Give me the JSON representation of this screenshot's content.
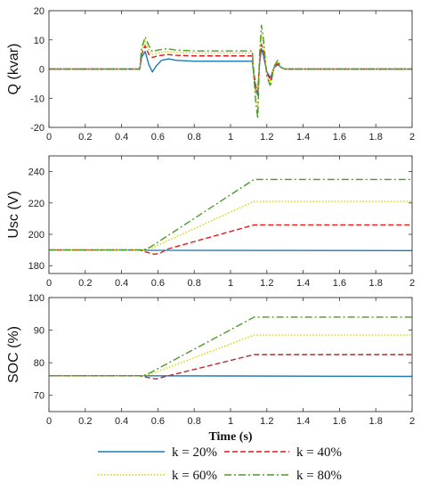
{
  "chart_data": [
    {
      "type": "line",
      "ylabel": "Q (kvar)",
      "xlabel": "",
      "xlim": [
        0,
        2
      ],
      "ylim": [
        -20,
        20
      ],
      "xticks": [
        "0",
        "0.2",
        "0.4",
        "0.6",
        "0.8",
        "1",
        "1.2",
        "1.4",
        "1.6",
        "1.8",
        "2"
      ],
      "yticks": [
        "-20",
        "-10",
        "0",
        "10",
        "20"
      ],
      "series": [
        {
          "name": "k = 20%",
          "color": "#1f78b4",
          "dash": "solid",
          "x": [
            0,
            0.5,
            0.51,
            0.53,
            0.55,
            0.57,
            0.59,
            0.62,
            0.66,
            0.7,
            0.8,
            1.0,
            1.12,
            1.13,
            1.14,
            1.15,
            1.16,
            1.17,
            1.18,
            1.2,
            1.22,
            1.24,
            1.26,
            1.28,
            1.3,
            1.34,
            1.4,
            2.0
          ],
          "y": [
            0,
            0,
            4,
            6,
            1.5,
            -1,
            1,
            3,
            3.5,
            3,
            2.7,
            2.7,
            2.7,
            -3,
            -7,
            -9,
            2,
            7,
            5,
            -1,
            -3,
            0.5,
            1.5,
            0.5,
            0,
            0,
            0,
            0
          ]
        },
        {
          "name": "k = 40%",
          "color": "#e31a1c",
          "dash": "6,3",
          "x": [
            0,
            0.5,
            0.51,
            0.53,
            0.55,
            0.57,
            0.6,
            0.65,
            0.7,
            0.8,
            1.0,
            1.12,
            1.13,
            1.14,
            1.15,
            1.16,
            1.17,
            1.18,
            1.2,
            1.22,
            1.24,
            1.26,
            1.28,
            1.3,
            1.34,
            1.4,
            2.0
          ],
          "y": [
            0,
            0,
            5,
            8,
            5,
            4,
            4.5,
            5,
            4.7,
            4.5,
            4.5,
            4.5,
            -2,
            -6,
            -8,
            3,
            8.5,
            6,
            -1,
            -4,
            0.5,
            2,
            0.5,
            0,
            0,
            0,
            0
          ]
        },
        {
          "name": "k = 60%",
          "color": "#d4d400",
          "dash": "1.5,2",
          "x": [
            0,
            0.5,
            0.51,
            0.53,
            0.55,
            0.57,
            0.6,
            0.65,
            0.7,
            0.8,
            1.0,
            1.12,
            1.13,
            1.14,
            1.15,
            1.16,
            1.17,
            1.18,
            1.2,
            1.22,
            1.24,
            1.26,
            1.28,
            1.3,
            1.34,
            1.4,
            2.0
          ],
          "y": [
            0,
            0,
            6,
            9.5,
            6.5,
            5,
            5.5,
            6,
            5.7,
            5.5,
            5.5,
            5.5,
            -3,
            -10,
            -14,
            4,
            12,
            9,
            -2,
            -5,
            1,
            2.5,
            0.5,
            0,
            0,
            0,
            0
          ]
        },
        {
          "name": "k = 80%",
          "color": "#4d9a2a",
          "dash": "8,3,2,3",
          "x": [
            0,
            0.5,
            0.51,
            0.53,
            0.55,
            0.57,
            0.6,
            0.65,
            0.7,
            0.8,
            1.0,
            1.12,
            1.13,
            1.14,
            1.15,
            1.16,
            1.17,
            1.18,
            1.2,
            1.22,
            1.24,
            1.26,
            1.28,
            1.3,
            1.34,
            1.4,
            2.0
          ],
          "y": [
            0,
            0,
            7,
            11,
            8,
            6,
            6.5,
            7,
            6.5,
            6.2,
            6.2,
            6.2,
            -4,
            -12,
            -17,
            5,
            15,
            11,
            -2.5,
            -6,
            1,
            3,
            0.5,
            0,
            0,
            0,
            0
          ]
        }
      ]
    },
    {
      "type": "line",
      "ylabel": "Usc (V)",
      "xlabel": "",
      "xlim": [
        0,
        2
      ],
      "ylim": [
        175,
        250
      ],
      "xticks": [
        "0",
        "0.2",
        "0.4",
        "0.6",
        "0.8",
        "1",
        "1.2",
        "1.4",
        "1.6",
        "1.8",
        "2"
      ],
      "yticks": [
        "180",
        "200",
        "220",
        "240"
      ],
      "series": [
        {
          "name": "k = 20%",
          "color": "#1f78b4",
          "dash": "solid",
          "x": [
            0,
            0.5,
            0.55,
            2.0
          ],
          "y": [
            190,
            190,
            189.8,
            189.6
          ]
        },
        {
          "name": "k = 40%",
          "color": "#e31a1c",
          "dash": "6,3",
          "x": [
            0,
            0.5,
            0.54,
            0.58,
            0.61,
            0.65,
            1.13,
            2.0
          ],
          "y": [
            190,
            190,
            188.5,
            187.3,
            187.8,
            190.5,
            206,
            206
          ]
        },
        {
          "name": "k = 60%",
          "color": "#d4d400",
          "dash": "1.5,2",
          "x": [
            0,
            0.52,
            0.56,
            1.13,
            2.0
          ],
          "y": [
            190,
            190,
            191,
            221,
            221
          ]
        },
        {
          "name": "k = 80%",
          "color": "#4d9a2a",
          "dash": "8,3,2,3",
          "x": [
            0,
            0.52,
            0.56,
            1.13,
            2.0
          ],
          "y": [
            190,
            190,
            192,
            235,
            235
          ]
        }
      ]
    },
    {
      "type": "line",
      "ylabel": "SOC (%)",
      "xlabel": "Time (s)",
      "xlim": [
        0,
        2
      ],
      "ylim": [
        65,
        100
      ],
      "xticks": [
        "0",
        "0.2",
        "0.4",
        "0.6",
        "0.8",
        "1",
        "1.2",
        "1.4",
        "1.6",
        "1.8",
        "2"
      ],
      "yticks": [
        "70",
        "80",
        "90",
        "100"
      ],
      "series": [
        {
          "name": "k = 20%",
          "color": "#1f78b4",
          "dash": "solid",
          "x": [
            0,
            0.5,
            2.0
          ],
          "y": [
            76,
            76,
            75.8
          ]
        },
        {
          "name": "k = 40%",
          "color": "#b03030",
          "dash": "6,3",
          "x": [
            0,
            0.5,
            0.55,
            0.59,
            0.63,
            1.13,
            2.0
          ],
          "y": [
            76,
            76,
            75.4,
            75,
            75.6,
            82.5,
            82.5
          ]
        },
        {
          "name": "k = 60%",
          "color": "#d4d400",
          "dash": "1.5,2",
          "x": [
            0,
            0.52,
            0.56,
            1.13,
            2.0
          ],
          "y": [
            76,
            76,
            76.5,
            88.5,
            88.5
          ]
        },
        {
          "name": "k = 80%",
          "color": "#4d9a2a",
          "dash": "8,3,2,3",
          "x": [
            0,
            0.52,
            0.56,
            1.13,
            2.0
          ],
          "y": [
            76,
            76,
            77,
            94,
            94
          ]
        }
      ]
    }
  ],
  "legend": {
    "items": [
      {
        "label": "k = 20%",
        "color": "#1f78b4",
        "dash": "solid"
      },
      {
        "label": "k = 40%",
        "color": "#e31a1c",
        "dash": "6,3"
      },
      {
        "label": "k = 60%",
        "color": "#d4d400",
        "dash": "1.5,2"
      },
      {
        "label": "k = 80%",
        "color": "#4d9a2a",
        "dash": "8,3,2,3"
      }
    ]
  }
}
